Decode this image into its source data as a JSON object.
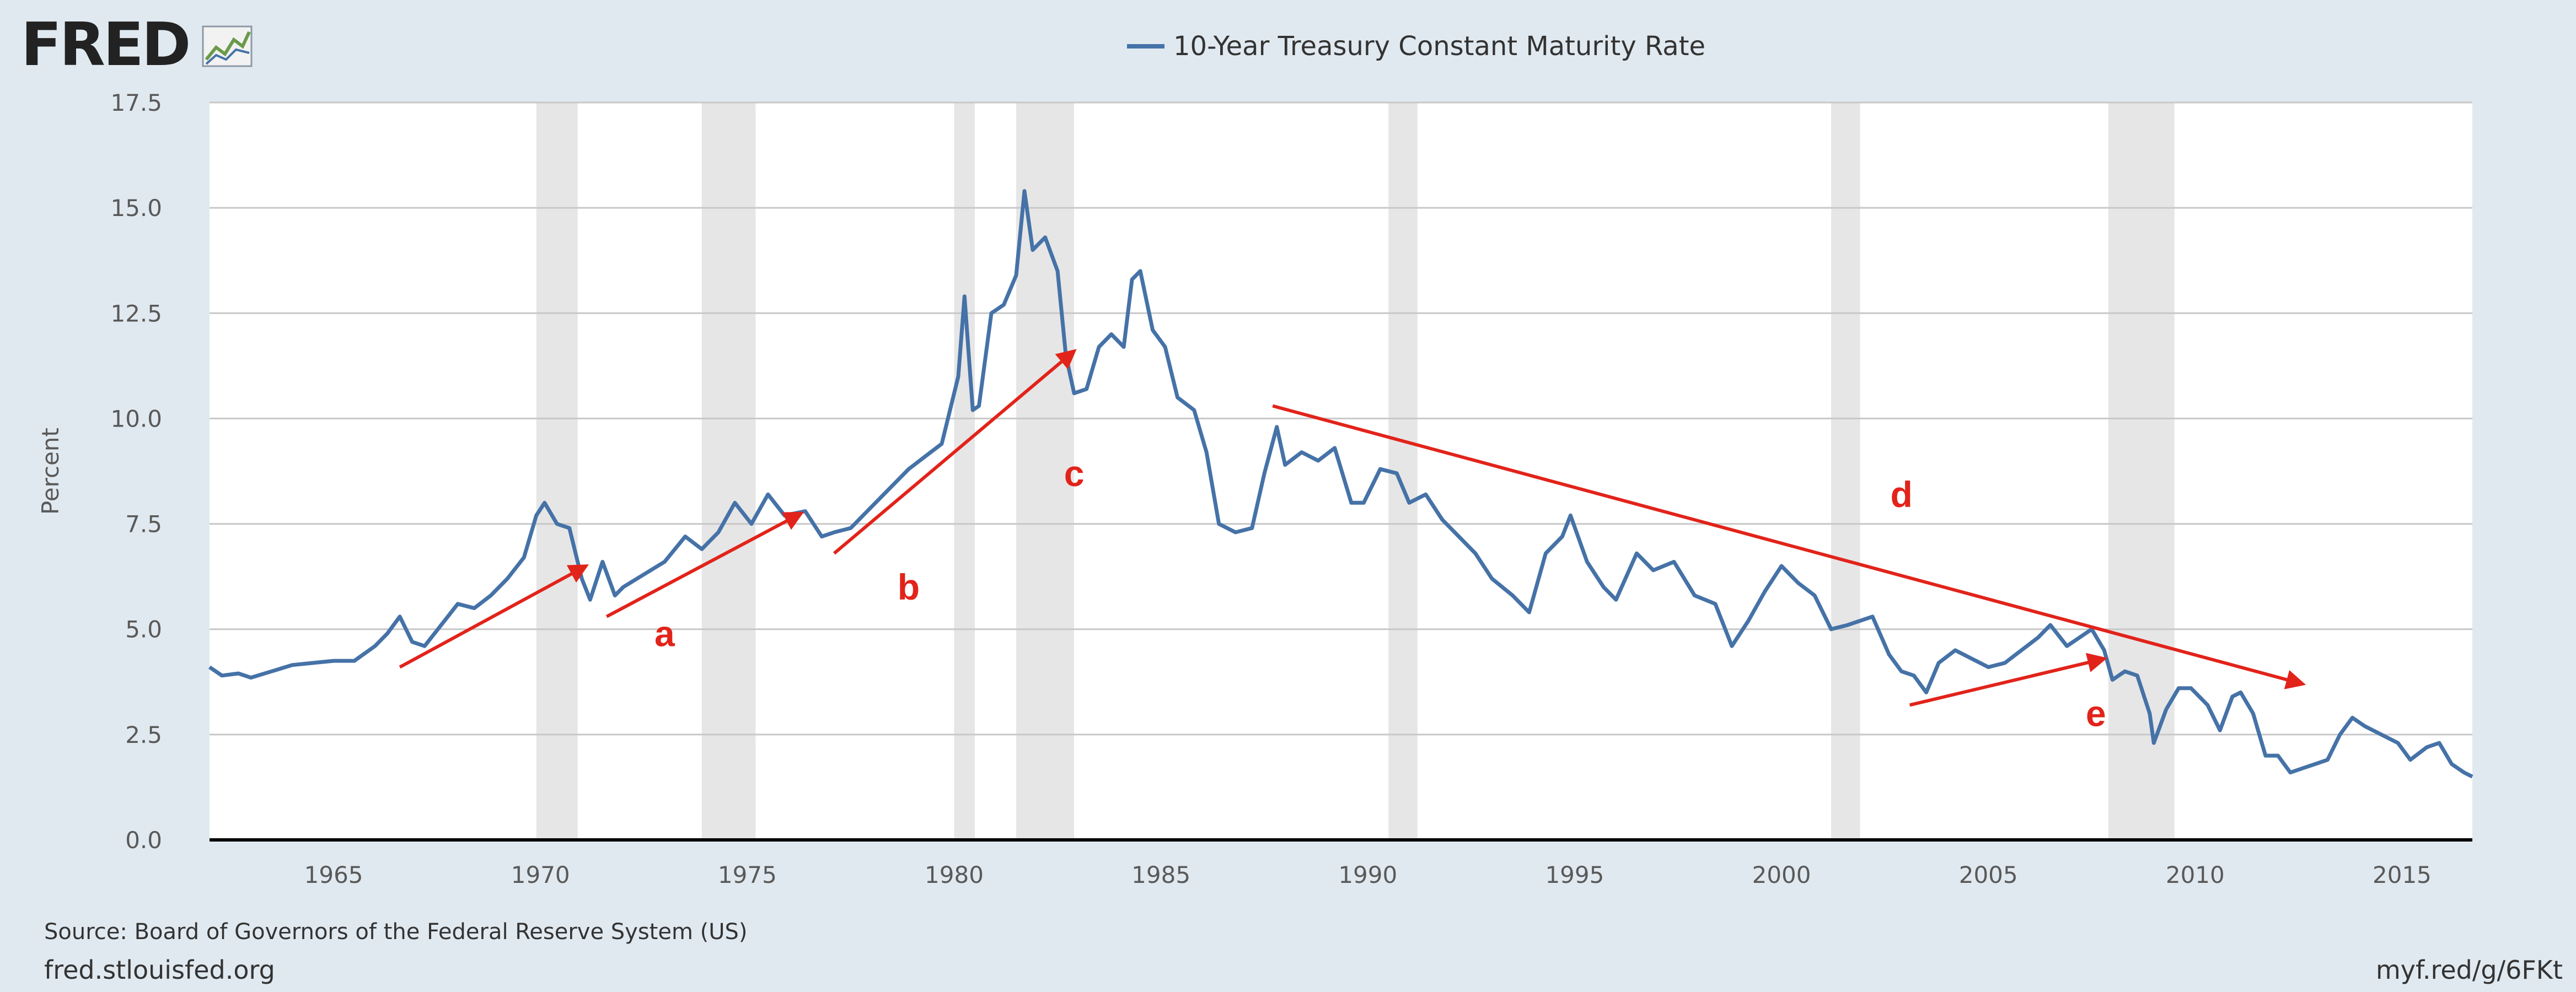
{
  "header": {
    "logo_text": "FRED",
    "logo_icon": "chart-line-icon"
  },
  "legend": {
    "label": "10-Year Treasury Constant Maturity Rate",
    "color": "#4572a7"
  },
  "footer": {
    "source": "Source: Board of Governors of the Federal Reserve System (US)",
    "site": "fred.stlouisfed.org",
    "short_link": "myf.red/g/6FKt"
  },
  "colors": {
    "background": "#e1e9f0",
    "plot_bg": "#ffffff",
    "line": "#4572a7",
    "recession": "#e6e6e6",
    "annotation": "#e2231a",
    "grid": "#c8c8c8"
  },
  "chart_data": {
    "type": "line",
    "title": "",
    "xlabel": "",
    "ylabel": "Percent",
    "xlim": [
      1962.0,
      2016.7
    ],
    "ylim": [
      0,
      17.5
    ],
    "y_ticks": [
      0.0,
      2.5,
      5.0,
      7.5,
      10.0,
      12.5,
      15.0,
      17.5
    ],
    "y_tick_labels": [
      "0.0",
      "2.5",
      "5.0",
      "7.5",
      "10.0",
      "12.5",
      "15.0",
      "17.5"
    ],
    "x_ticks": [
      1965,
      1970,
      1975,
      1980,
      1985,
      1990,
      1995,
      2000,
      2005,
      2010,
      2015
    ],
    "x_tick_labels": [
      "1965",
      "1970",
      "1975",
      "1980",
      "1985",
      "1990",
      "1995",
      "2000",
      "2005",
      "2010",
      "2015"
    ],
    "grid": "horizontal",
    "legend_position": "top-center",
    "recessions": [
      [
        1969.9,
        1970.9
      ],
      [
        1973.9,
        1975.2
      ],
      [
        1980.0,
        1980.5
      ],
      [
        1981.5,
        1982.9
      ],
      [
        1990.5,
        1991.2
      ],
      [
        2001.2,
        2001.9
      ],
      [
        2007.9,
        2009.5
      ]
    ],
    "series": [
      {
        "name": "10-Year Treasury Constant Maturity Rate",
        "x": [
          1962.0,
          1962.3,
          1962.7,
          1963.0,
          1963.5,
          1964.0,
          1964.5,
          1965.0,
          1965.5,
          1966.0,
          1966.3,
          1966.6,
          1966.9,
          1967.2,
          1967.6,
          1968.0,
          1968.4,
          1968.8,
          1969.2,
          1969.6,
          1969.9,
          1970.1,
          1970.4,
          1970.7,
          1971.0,
          1971.2,
          1971.5,
          1971.8,
          1972.0,
          1972.5,
          1973.0,
          1973.5,
          1973.9,
          1974.3,
          1974.7,
          1975.1,
          1975.5,
          1975.9,
          1976.4,
          1976.8,
          1977.1,
          1977.5,
          1977.9,
          1978.4,
          1978.9,
          1979.3,
          1979.7,
          1980.1,
          1980.25,
          1980.45,
          1980.6,
          1980.9,
          1981.2,
          1981.5,
          1981.7,
          1981.9,
          1982.2,
          1982.5,
          1982.7,
          1982.9,
          1983.2,
          1983.5,
          1983.8,
          1984.1,
          1984.3,
          1984.5,
          1984.8,
          1985.1,
          1985.4,
          1985.8,
          1986.1,
          1986.4,
          1986.8,
          1987.2,
          1987.5,
          1987.8,
          1988.0,
          1988.4,
          1988.8,
          1989.2,
          1989.6,
          1989.9,
          1990.3,
          1990.7,
          1991.0,
          1991.4,
          1991.8,
          1992.2,
          1992.6,
          1993.0,
          1993.5,
          1993.9,
          1994.3,
          1994.7,
          1994.9,
          1995.3,
          1995.7,
          1996.0,
          1996.5,
          1996.9,
          1997.4,
          1997.9,
          1998.4,
          1998.8,
          1999.2,
          1999.6,
          2000.0,
          2000.4,
          2000.8,
          2001.2,
          2001.6,
          2001.9,
          2002.2,
          2002.6,
          2002.9,
          2003.2,
          2003.5,
          2003.8,
          2004.2,
          2004.6,
          2005.0,
          2005.4,
          2005.8,
          2006.2,
          2006.5,
          2006.9,
          2007.2,
          2007.5,
          2007.8,
          2008.0,
          2008.3,
          2008.6,
          2008.9,
          2009.0,
          2009.3,
          2009.6,
          2009.9,
          2010.3,
          2010.6,
          2010.9,
          2011.1,
          2011.4,
          2011.7,
          2012.0,
          2012.3,
          2012.6,
          2012.9,
          2013.2,
          2013.5,
          2013.8,
          2014.1,
          2014.5,
          2014.9,
          2015.2,
          2015.6,
          2015.9,
          2016.2,
          2016.5,
          2016.7
        ],
        "y": [
          4.1,
          3.9,
          3.95,
          3.85,
          4.0,
          4.15,
          4.2,
          4.25,
          4.25,
          4.6,
          4.9,
          5.3,
          4.7,
          4.6,
          5.1,
          5.6,
          5.5,
          5.8,
          6.2,
          6.7,
          7.7,
          8.0,
          7.5,
          7.4,
          6.2,
          5.7,
          6.6,
          5.8,
          6.0,
          6.3,
          6.6,
          7.2,
          6.9,
          7.3,
          8.0,
          7.5,
          8.2,
          7.7,
          7.8,
          7.2,
          7.3,
          7.4,
          7.8,
          8.3,
          8.8,
          9.1,
          9.4,
          11.0,
          12.9,
          10.2,
          10.3,
          12.5,
          12.7,
          13.4,
          15.4,
          14.0,
          14.3,
          13.5,
          11.5,
          10.6,
          10.7,
          11.7,
          12.0,
          11.7,
          13.3,
          13.5,
          12.1,
          11.7,
          10.5,
          10.2,
          9.2,
          7.5,
          7.3,
          7.4,
          8.7,
          9.8,
          8.9,
          9.2,
          9.0,
          9.3,
          8.0,
          8.0,
          8.8,
          8.7,
          8.0,
          8.2,
          7.6,
          7.2,
          6.8,
          6.2,
          5.8,
          5.4,
          6.8,
          7.2,
          7.7,
          6.6,
          6.0,
          5.7,
          6.8,
          6.4,
          6.6,
          5.8,
          5.6,
          4.6,
          5.2,
          5.9,
          6.5,
          6.1,
          5.8,
          5.0,
          5.1,
          5.2,
          5.3,
          4.4,
          4.0,
          3.9,
          3.5,
          4.2,
          4.5,
          4.3,
          4.1,
          4.2,
          4.5,
          4.8,
          5.1,
          4.6,
          4.8,
          5.0,
          4.5,
          3.8,
          4.0,
          3.9,
          3.0,
          2.3,
          3.1,
          3.6,
          3.6,
          3.2,
          2.6,
          3.4,
          3.5,
          3.0,
          2.0,
          2.0,
          1.6,
          1.7,
          1.8,
          1.9,
          2.5,
          2.9,
          2.7,
          2.5,
          2.3,
          1.9,
          2.2,
          2.3,
          1.8,
          1.6,
          1.5
        ]
      }
    ],
    "annotations": [
      {
        "label": "a",
        "x": 1973.0,
        "y": 4.6
      },
      {
        "label": "b",
        "x": 1978.9,
        "y": 5.7
      },
      {
        "label": "c",
        "x": 1982.9,
        "y": 8.4
      },
      {
        "label": "d",
        "x": 2002.9,
        "y": 7.9
      },
      {
        "label": "e",
        "x": 2007.6,
        "y": 2.7
      }
    ],
    "trend_arrows": [
      {
        "label": "a",
        "from": [
          1966.6,
          4.1
        ],
        "to": [
          1971.1,
          6.5
        ]
      },
      {
        "label": "b",
        "from": [
          1971.6,
          5.3
        ],
        "to": [
          1976.3,
          7.75
        ]
      },
      {
        "label": "c",
        "from": [
          1977.1,
          6.8
        ],
        "to": [
          1982.9,
          11.6
        ]
      },
      {
        "label": "d",
        "from": [
          1987.7,
          10.3
        ],
        "to": [
          2012.6,
          3.7
        ]
      },
      {
        "label": "e",
        "from": [
          2003.1,
          3.2
        ],
        "to": [
          2007.8,
          4.3
        ]
      }
    ]
  }
}
